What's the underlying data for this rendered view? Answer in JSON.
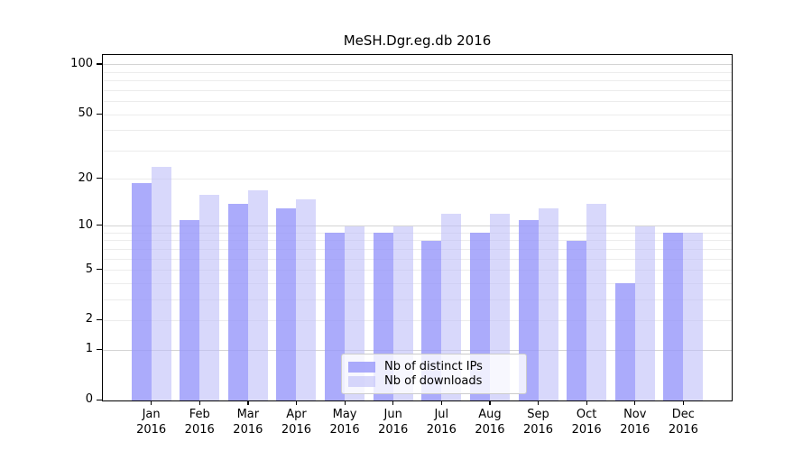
{
  "chart_data": {
    "type": "bar",
    "title": "MeSH.Dgr.eg.db 2016",
    "categories": [
      "Jan",
      "Feb",
      "Mar",
      "Apr",
      "May",
      "Jun",
      "Jul",
      "Aug",
      "Sep",
      "Oct",
      "Nov",
      "Dec"
    ],
    "category_year": "2016",
    "series": [
      {
        "name": "Nb of distinct IPs",
        "color": "rgba(150,150,250,0.8)",
        "values": [
          19,
          11,
          14,
          13,
          9,
          9,
          8,
          9,
          11,
          8,
          4,
          9
        ]
      },
      {
        "name": "Nb of downloads",
        "color": "rgba(190,190,248,0.6)",
        "values": [
          24,
          16,
          17,
          15,
          10,
          10,
          12,
          12,
          13,
          14,
          10,
          9
        ]
      }
    ],
    "yscale": "log1p",
    "ylim": [
      0,
      113
    ],
    "y_ticks": [
      0,
      1,
      2,
      5,
      10,
      20,
      50,
      100
    ],
    "y_major_gridlines": [
      1,
      10,
      100
    ],
    "y_minor_gridlines": [
      2,
      3,
      4,
      5,
      6,
      7,
      8,
      9,
      20,
      30,
      40,
      50,
      60,
      70,
      80,
      90
    ],
    "grid": true,
    "legend_position": "lower center",
    "xlabel": "",
    "ylabel": "",
    "colors": {
      "background": "#ffffff",
      "axis": "#000000",
      "major_grid": "#d4d4d4",
      "minor_grid": "#ececec",
      "bar_ips_on_white": "#a8a8f8",
      "bar_downloads_on_white": "#d8d8f8"
    }
  }
}
